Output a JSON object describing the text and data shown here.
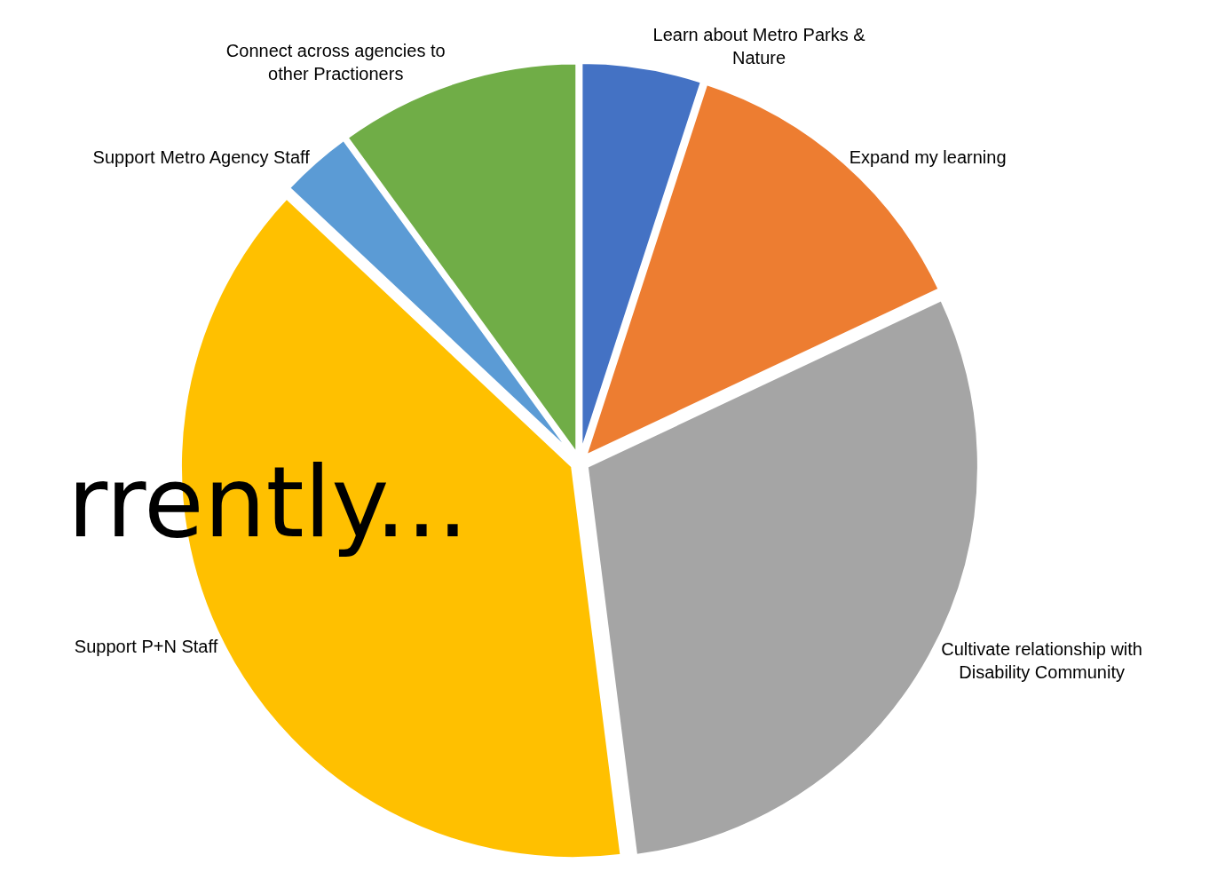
{
  "chart_data": {
    "type": "pie",
    "categories": [
      "Learn about Metro Parks & Nature",
      "Expand my learning",
      "Cultivate relationship with Disability Community",
      "Support P+N Staff",
      "Support Metro Agency Staff",
      "Connect across agencies to other Practioners"
    ],
    "values": [
      5,
      13,
      30,
      39,
      3,
      10
    ],
    "colors": [
      "#4472c4",
      "#ed7d31",
      "#a5a5a5",
      "#ffc000",
      "#5b9bd5",
      "#70ad47"
    ],
    "annotations": [
      "rrently..."
    ],
    "legend": false
  }
}
